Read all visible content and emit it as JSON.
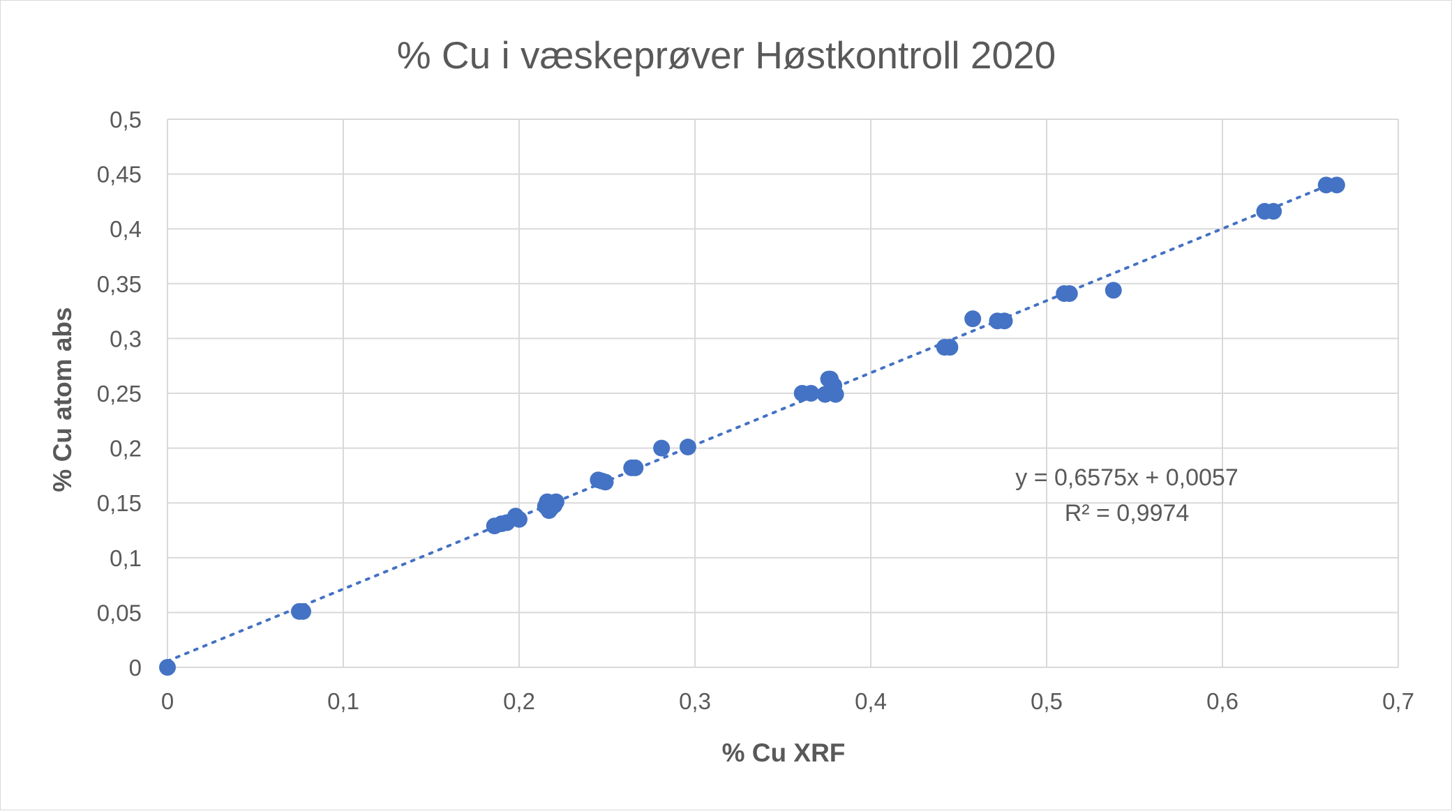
{
  "chart_data": {
    "type": "scatter",
    "title": "% Cu i væskeprøver Høstkontroll 2020",
    "xlabel": "% Cu XRF",
    "ylabel": "% Cu atom abs",
    "xlim": [
      0,
      0.7
    ],
    "ylim": [
      0,
      0.5
    ],
    "x_ticks": [
      "0",
      "0,1",
      "0,2",
      "0,3",
      "0,4",
      "0,5",
      "0,6",
      "0,7"
    ],
    "x_tick_values": [
      0,
      0.1,
      0.2,
      0.3,
      0.4,
      0.5,
      0.6,
      0.7
    ],
    "y_ticks": [
      "0",
      "0,05",
      "0,1",
      "0,15",
      "0,2",
      "0,25",
      "0,3",
      "0,35",
      "0,4",
      "0,45",
      "0,5"
    ],
    "y_tick_values": [
      0,
      0.05,
      0.1,
      0.15,
      0.2,
      0.25,
      0.3,
      0.35,
      0.4,
      0.45,
      0.5
    ],
    "grid": true,
    "marker_color": "#4472c4",
    "series": [
      {
        "x": [
          0,
          0.075,
          0.077,
          0.186,
          0.19,
          0.193,
          0.198,
          0.2,
          0.215,
          0.216,
          0.217,
          0.218,
          0.22,
          0.221,
          0.245,
          0.247,
          0.249,
          0.264,
          0.266,
          0.281,
          0.296,
          0.361,
          0.366,
          0.374,
          0.376,
          0.377,
          0.379,
          0.38,
          0.442,
          0.445,
          0.458,
          0.472,
          0.476,
          0.51,
          0.513,
          0.538,
          0.624,
          0.629,
          0.659,
          0.665
        ],
        "y": [
          0,
          0.051,
          0.051,
          0.129,
          0.131,
          0.132,
          0.138,
          0.135,
          0.147,
          0.151,
          0.143,
          0.145,
          0.148,
          0.151,
          0.171,
          0.17,
          0.169,
          0.182,
          0.182,
          0.2,
          0.201,
          0.25,
          0.25,
          0.249,
          0.263,
          0.263,
          0.257,
          0.249,
          0.292,
          0.292,
          0.318,
          0.316,
          0.316,
          0.341,
          0.341,
          0.344,
          0.416,
          0.416,
          0.44,
          0.44
        ]
      }
    ],
    "trendline": {
      "type": "linear",
      "slope": 0.6575,
      "intercept": 0.0057,
      "color": "#4472c4",
      "style": "dotted",
      "equation_label": "y = 0,6575x + 0,0057",
      "r2_label": "R² = 0,9974"
    }
  }
}
